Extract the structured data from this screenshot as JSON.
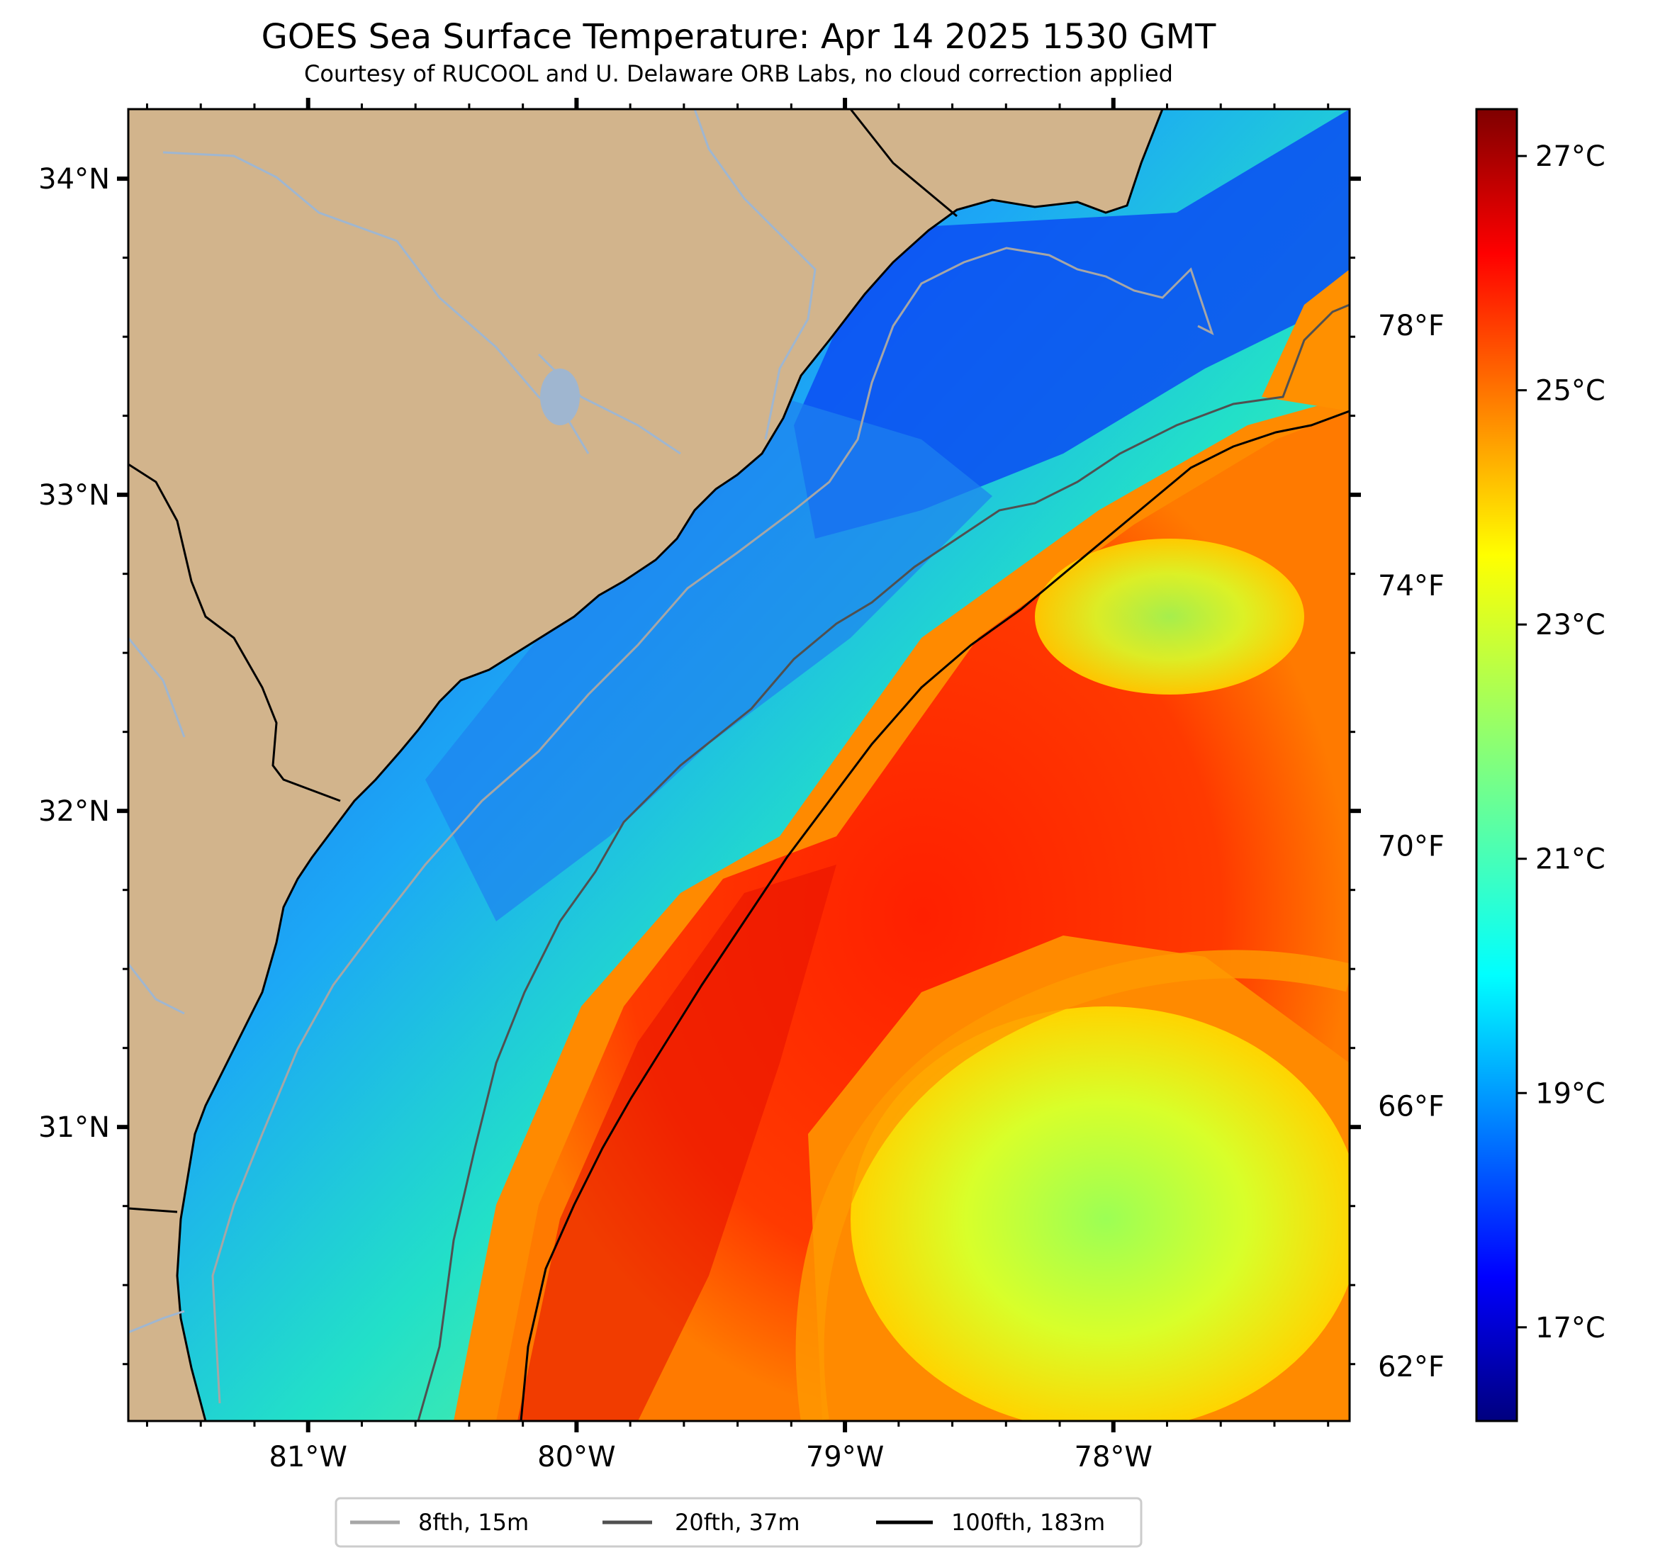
{
  "title": "GOES Sea Surface Temperature: Apr 14 2025 1530 GMT",
  "subtitle": "Courtesy of RUCOOL and U. Delaware ORB Labs, no cloud correction applied",
  "map": {
    "lon_range": [
      -81.67,
      -77.12
    ],
    "lat_range": [
      30.07,
      34.22
    ],
    "lon_ticks": [
      {
        "value": -81,
        "label": "81°W"
      },
      {
        "value": -80,
        "label": "80°W"
      },
      {
        "value": -79,
        "label": "79°W"
      },
      {
        "value": -78,
        "label": "78°W"
      }
    ],
    "lat_ticks": [
      {
        "value": 34,
        "label": "34°N"
      },
      {
        "value": 33,
        "label": "33°N"
      },
      {
        "value": 32,
        "label": "32°N"
      },
      {
        "value": 31,
        "label": "31°N"
      }
    ],
    "temp_ticks_f": [
      {
        "value": 78,
        "label": "78°F"
      },
      {
        "value": 74,
        "label": "74°F"
      },
      {
        "value": 70,
        "label": "70°F"
      },
      {
        "value": 66,
        "label": "66°F"
      },
      {
        "value": 62,
        "label": "62°F"
      }
    ]
  },
  "colorbar": {
    "range_c": [
      16.2,
      27.4
    ],
    "ticks": [
      {
        "value": 27,
        "label": "27°C"
      },
      {
        "value": 25,
        "label": "25°C"
      },
      {
        "value": 23,
        "label": "23°C"
      },
      {
        "value": 21,
        "label": "21°C"
      },
      {
        "value": 19,
        "label": "19°C"
      },
      {
        "value": 17,
        "label": "17°C"
      }
    ],
    "colormap": "jet"
  },
  "legend": {
    "items": [
      {
        "label": "8fth, 15m",
        "color": "#a6a6a6"
      },
      {
        "label": "20fth, 37m",
        "color": "#505050"
      },
      {
        "label": "100fth, 183m",
        "color": "#000000"
      }
    ]
  },
  "colors": {
    "land": "#d2b48c",
    "river": "#9fb6d0",
    "cold": "#0a3cf0",
    "warm": "#ff2a00"
  }
}
